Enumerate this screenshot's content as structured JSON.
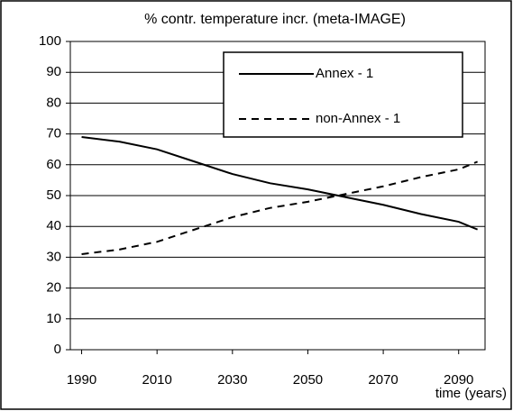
{
  "chart_data": {
    "type": "line",
    "title": "% contr. temperature incr. (meta-IMAGE)",
    "x_label": "time (years)",
    "x": [
      1990,
      2000,
      2010,
      2020,
      2030,
      2040,
      2050,
      2060,
      2070,
      2080,
      2090,
      2095
    ],
    "series": [
      {
        "name": "Annex - 1",
        "color": "#000000",
        "dash": "solid",
        "values": [
          69,
          67.5,
          65,
          61,
          57,
          54,
          52,
          49.5,
          47,
          44,
          41.5,
          39
        ]
      },
      {
        "name": "non-Annex - 1",
        "color": "#000000",
        "dash": "dashed",
        "values": [
          31,
          32.5,
          35,
          39,
          43,
          46,
          48,
          50.5,
          53,
          56,
          58.5,
          61
        ]
      }
    ],
    "xlim": [
      1987,
      2097
    ],
    "xticks": [
      1990,
      2010,
      2030,
      2050,
      2070,
      2090
    ],
    "ylim": [
      0,
      100
    ],
    "yticks": [
      0,
      10,
      20,
      30,
      40,
      50,
      60,
      70,
      80,
      90,
      100
    ],
    "grid": true,
    "legend": "top-right"
  }
}
